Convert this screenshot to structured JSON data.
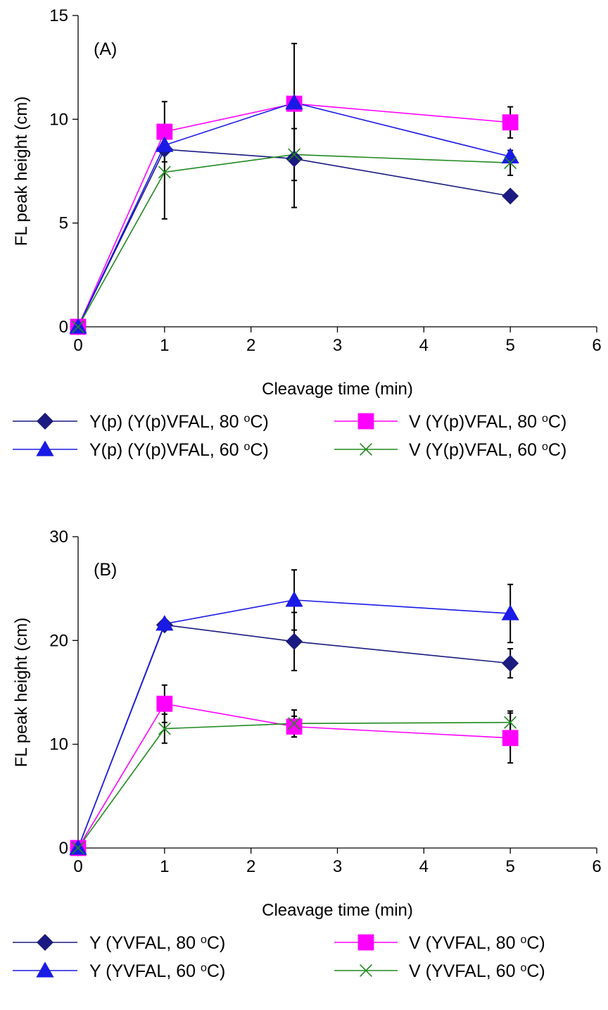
{
  "chart_data": [
    {
      "type": "line",
      "panel_label": "(A)",
      "xlabel": "Cleavage time (min)",
      "ylabel": "FL peak height (cm)",
      "xlim": [
        0,
        6
      ],
      "ylim": [
        0,
        15
      ],
      "xticks": [
        "0",
        "1",
        "2",
        "3",
        "4",
        "5",
        "6"
      ],
      "yticks": [
        "0",
        "5",
        "10",
        "15"
      ],
      "grid": false,
      "legend_position": "below",
      "series": [
        {
          "name": "Y(p) (Y(p)VFAL, 80 oC)",
          "marker": "diamond",
          "color": "#1a1a80",
          "x": [
            0,
            1,
            2.5,
            5
          ],
          "y": [
            0,
            8.55,
            8.1,
            6.3
          ],
          "err": [
            0,
            0,
            2.35,
            0
          ]
        },
        {
          "name": "V (Y(p)VFAL, 80 oC)",
          "marker": "square",
          "color": "#ff00ff",
          "x": [
            0,
            1,
            2.5,
            5
          ],
          "y": [
            0,
            9.4,
            10.75,
            9.85
          ],
          "err": [
            0,
            1.45,
            0,
            0.75
          ]
        },
        {
          "name": "Y(p) (Y(p)VFAL, 60 oC)",
          "marker": "triangle",
          "color": "#1a1ae6",
          "x": [
            0,
            1,
            2.5,
            5
          ],
          "y": [
            0,
            8.75,
            10.8,
            8.2
          ],
          "err": [
            0,
            0,
            2.85,
            0
          ]
        },
        {
          "name": "V (Y(p)VFAL, 60 oC)",
          "marker": "x",
          "color": "#1f8a1f",
          "x": [
            0,
            1,
            2.5,
            5
          ],
          "y": [
            0,
            7.45,
            8.3,
            7.9
          ],
          "err": [
            0,
            2.25,
            1.25,
            0.6
          ]
        }
      ]
    },
    {
      "type": "line",
      "panel_label": "(B)",
      "xlabel": "Cleavage time (min)",
      "ylabel": "FL peak height (cm)",
      "xlim": [
        0,
        6
      ],
      "ylim": [
        0,
        30
      ],
      "xticks": [
        "0",
        "1",
        "2",
        "3",
        "4",
        "5",
        "6"
      ],
      "yticks": [
        "0",
        "10",
        "20",
        "30"
      ],
      "grid": false,
      "legend_position": "below",
      "series": [
        {
          "name": "Y (YVFAL, 80 oC)",
          "marker": "diamond",
          "color": "#1a1a80",
          "x": [
            0,
            1,
            2.5,
            5
          ],
          "y": [
            0,
            21.5,
            19.9,
            17.8
          ],
          "err": [
            0,
            0,
            2.8,
            1.4
          ]
        },
        {
          "name": "V (YVFAL, 80 oC)",
          "marker": "square",
          "color": "#ff00ff",
          "x": [
            0,
            1,
            2.5,
            5
          ],
          "y": [
            0,
            13.9,
            11.7,
            10.6
          ],
          "err": [
            0,
            1.8,
            1.0,
            2.4
          ]
        },
        {
          "name": "Y (YVFAL, 60 oC)",
          "marker": "triangle",
          "color": "#1a1ae6",
          "x": [
            0,
            1,
            2.5,
            5
          ],
          "y": [
            0,
            21.6,
            23.9,
            22.6
          ],
          "err": [
            0,
            0,
            2.9,
            2.8
          ]
        },
        {
          "name": "V (YVFAL, 60 oC)",
          "marker": "x",
          "color": "#1f8a1f",
          "x": [
            0,
            1,
            2.5,
            5
          ],
          "y": [
            0,
            11.5,
            12.0,
            12.1
          ],
          "err": [
            0,
            1.4,
            1.3,
            1.1
          ]
        }
      ]
    }
  ]
}
